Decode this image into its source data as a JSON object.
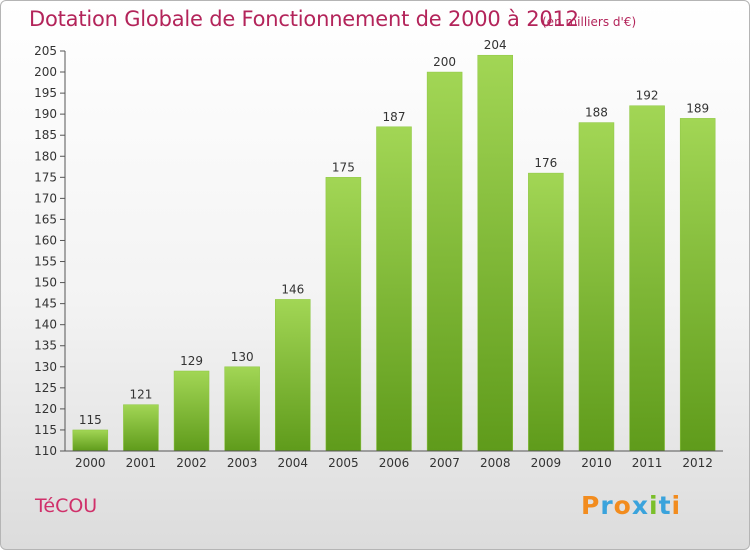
{
  "header": {
    "title": "Dotation Globale de Fonctionnement de 2000 à 2012",
    "unit": "(en milliers d'€)"
  },
  "footer": {
    "town": "TéCOU",
    "logo": "Proxiti"
  },
  "colors": {
    "title": "#b3245a",
    "bar_light": "#9fd34e",
    "bar_dark": "#5f9b1b",
    "logo_letters": [
      "#f28c1e",
      "#3aa3dc",
      "#f28c1e",
      "#3aa3dc",
      "#7bbf2a",
      "#3aa3dc",
      "#f28c1e"
    ]
  },
  "chart_data": {
    "type": "bar",
    "categories": [
      "2000",
      "2001",
      "2002",
      "2003",
      "2004",
      "2005",
      "2006",
      "2007",
      "2008",
      "2009",
      "2010",
      "2011",
      "2012"
    ],
    "values": [
      115,
      121,
      129,
      130,
      146,
      175,
      187,
      200,
      204,
      176,
      188,
      192,
      189
    ],
    "ylim": [
      110,
      205
    ],
    "yticks": [
      110,
      115,
      120,
      125,
      130,
      135,
      140,
      145,
      150,
      155,
      160,
      165,
      170,
      175,
      180,
      185,
      190,
      195,
      200,
      205
    ],
    "grid": false,
    "data_labels": true
  }
}
